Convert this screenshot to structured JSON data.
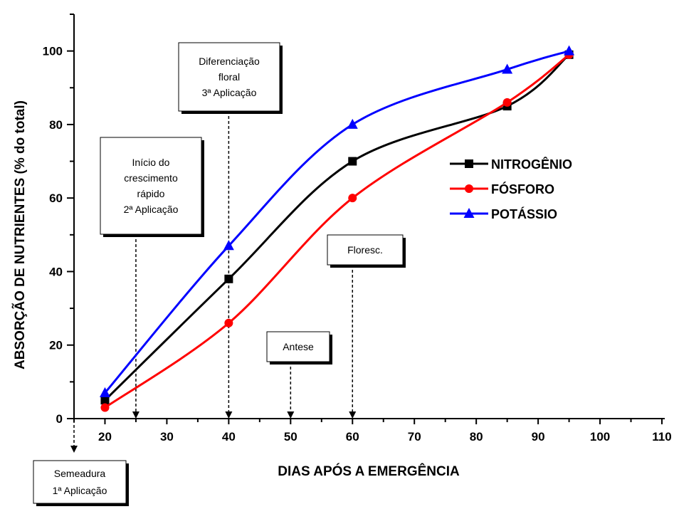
{
  "chart_data": {
    "type": "line",
    "xlabel": "DIAS APÓS A EMERGÊNCIA",
    "ylabel": "ABSORÇÃO DE NUTRIENTES (% do total)",
    "xlim": [
      15,
      110
    ],
    "ylim": [
      0,
      110
    ],
    "x_ticks": [
      20,
      30,
      40,
      50,
      60,
      70,
      80,
      90,
      100,
      110
    ],
    "y_ticks": [
      0,
      20,
      40,
      60,
      80,
      100
    ],
    "legend_position": "right",
    "series": [
      {
        "name": "NITROGÊNIO",
        "color": "#000000",
        "marker": "square",
        "x": [
          20,
          40,
          60,
          85,
          95
        ],
        "y": [
          5,
          38,
          70,
          85,
          99
        ]
      },
      {
        "name": "FÓSFORO",
        "color": "#ff0000",
        "marker": "circle",
        "x": [
          20,
          40,
          60,
          85,
          95
        ],
        "y": [
          3,
          26,
          60,
          86,
          99
        ]
      },
      {
        "name": "POTÁSSIO",
        "color": "#0000ff",
        "marker": "triangle",
        "x": [
          20,
          40,
          60,
          85,
          95
        ],
        "y": [
          7,
          47,
          80,
          95,
          100
        ]
      }
    ],
    "annotations": [
      {
        "x": 40,
        "lines": [
          "Diferenciação",
          "floral",
          "3ª Aplicação"
        ]
      },
      {
        "x": 25,
        "lines": [
          "Início do",
          "crescimento",
          "rápido",
          "2ª Aplicação"
        ]
      },
      {
        "x": 60,
        "lines": [
          "Floresc."
        ]
      },
      {
        "x": 50,
        "lines": [
          "Antese"
        ]
      },
      {
        "x": 15,
        "lines": [
          "Semeadura",
          "1ª Aplicação"
        ]
      }
    ]
  }
}
